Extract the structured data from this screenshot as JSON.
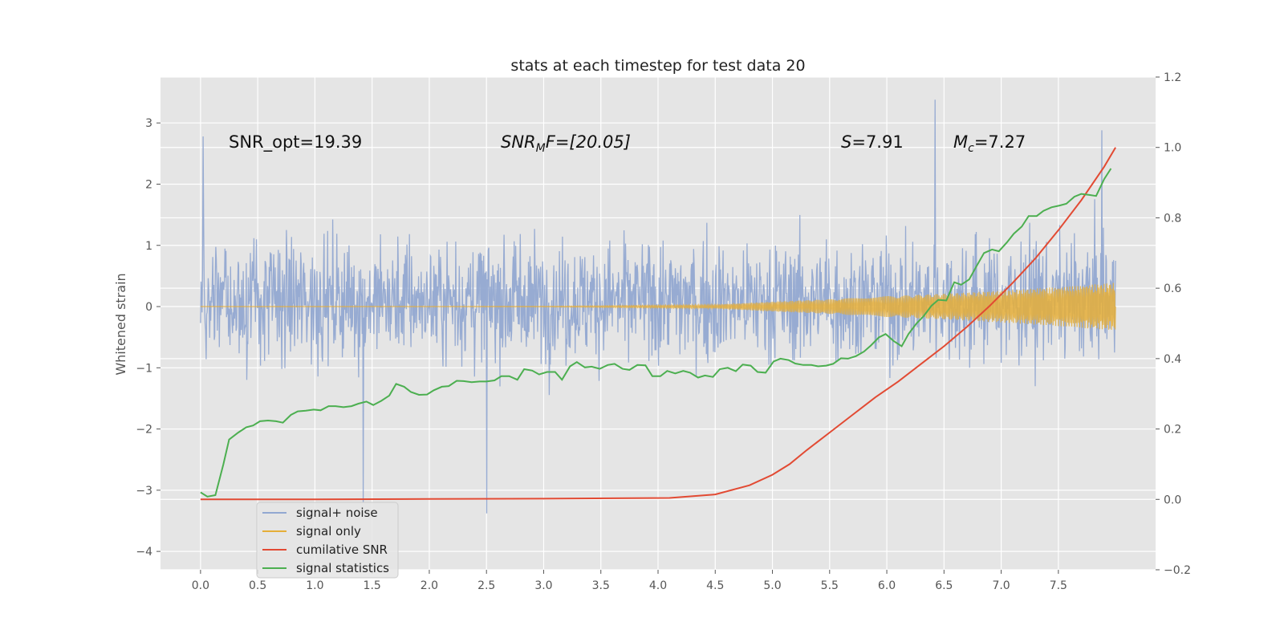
{
  "chart_data": {
    "type": "line",
    "title": "stats at each timestep for test data 20",
    "ylabel": "Whitened strain",
    "xlim": [
      -0.35,
      8.35
    ],
    "ylim": [
      -4.3,
      3.75
    ],
    "y2lim": [
      -0.2,
      1.2
    ],
    "xticks": [
      "0.0",
      "0.5",
      "1.0",
      "1.5",
      "2.0",
      "2.5",
      "3.0",
      "3.5",
      "4.0",
      "4.5",
      "5.0",
      "5.5",
      "6.0",
      "6.5",
      "7.0",
      "7.5"
    ],
    "yticks": [
      "3",
      "2",
      "1",
      "0",
      "−1",
      "−2",
      "−3",
      "−4"
    ],
    "y2ticks": [
      "1.2",
      "1.0",
      "0.8",
      "0.6",
      "0.4",
      "0.2",
      "0.0",
      "−0.2"
    ],
    "grid": true,
    "legend_position": "lower-left",
    "annotations": {
      "snr_opt": "SNR_opt=19.39",
      "snr_mf_main": "SNR",
      "snr_mf_sub": "M",
      "snr_mf_rest": "F=[20.05]",
      "s_sym": "S",
      "s_val": "=7.91",
      "mc_sym": "M",
      "mc_sub": "c",
      "mc_val": "=7.27"
    },
    "series": [
      {
        "name": "signal+ noise",
        "color": "#92a8d1",
        "axis": "left",
        "description_values": {
          "x_range": [
            0.0,
            8.0
          ],
          "typical_band": [
            -1.8,
            2.0
          ],
          "notable_spikes": [
            [
              0.02,
              2.78
            ],
            [
              1.42,
              -3.2
            ],
            [
              2.5,
              -3.38
            ],
            [
              6.42,
              3.38
            ],
            [
              7.88,
              2.88
            ]
          ]
        }
      },
      {
        "name": "signal only",
        "color": "#e5ae38",
        "axis": "left",
        "envelope": {
          "x": [
            0.0,
            3.0,
            4.5,
            5.0,
            5.5,
            6.0,
            6.5,
            7.0,
            7.5,
            8.0
          ],
          "amplitude": [
            0.0,
            0.005,
            0.03,
            0.08,
            0.12,
            0.17,
            0.21,
            0.26,
            0.32,
            0.39
          ]
        }
      },
      {
        "name": "cumilative SNR",
        "color": "#e24a33",
        "axis": "right",
        "x": [
          0.0,
          1.0,
          2.0,
          3.0,
          4.1,
          4.5,
          4.8,
          5.0,
          5.15,
          5.3,
          5.5,
          5.7,
          5.9,
          6.1,
          6.3,
          6.5,
          6.7,
          6.9,
          7.1,
          7.3,
          7.5,
          7.7,
          7.9,
          8.0
        ],
        "y": [
          0.0,
          0.0,
          0.001,
          0.002,
          0.004,
          0.014,
          0.04,
          0.07,
          0.1,
          0.14,
          0.19,
          0.24,
          0.29,
          0.335,
          0.385,
          0.435,
          0.49,
          0.55,
          0.615,
          0.685,
          0.765,
          0.85,
          0.945,
          1.0
        ]
      },
      {
        "name": "signal statistics",
        "color": "#4caf50",
        "axis": "right",
        "x": [
          0.0,
          0.06,
          0.13,
          0.2,
          0.25,
          0.33,
          0.4,
          0.46,
          0.52,
          0.59,
          0.66,
          0.72,
          0.79,
          0.85,
          0.92,
          0.99,
          1.05,
          1.12,
          1.18,
          1.25,
          1.32,
          1.38,
          1.45,
          1.51,
          1.58,
          1.65,
          1.71,
          1.78,
          1.84,
          1.91,
          1.98,
          2.04,
          2.11,
          2.17,
          2.24,
          2.3,
          2.37,
          2.44,
          2.5,
          2.57,
          2.63,
          2.7,
          2.77,
          2.83,
          2.9,
          2.96,
          3.03,
          3.1,
          3.16,
          3.23,
          3.29,
          3.36,
          3.42,
          3.49,
          3.56,
          3.62,
          3.69,
          3.75,
          3.82,
          3.89,
          3.95,
          4.02,
          4.08,
          4.15,
          4.22,
          4.28,
          4.35,
          4.41,
          4.48,
          4.54,
          4.61,
          4.68,
          4.74,
          4.81,
          4.87,
          4.94,
          5.01,
          5.07,
          5.14,
          5.2,
          5.27,
          5.34,
          5.4,
          5.47,
          5.53,
          5.6,
          5.66,
          5.73,
          5.8,
          5.86,
          5.93,
          5.99,
          6.06,
          6.13,
          6.19,
          6.26,
          6.32,
          6.39,
          6.45,
          6.52,
          6.59,
          6.65,
          6.72,
          6.78,
          6.85,
          6.92,
          6.98,
          7.05,
          7.11,
          7.18,
          7.24,
          7.31,
          7.37,
          7.44,
          7.51,
          7.57,
          7.64,
          7.7,
          7.77,
          7.83,
          7.9,
          7.96
        ],
        "y": [
          0.02,
          0.008,
          0.012,
          0.1,
          0.17,
          0.19,
          0.205,
          0.21,
          0.222,
          0.224,
          0.222,
          0.218,
          0.24,
          0.25,
          0.252,
          0.255,
          0.253,
          0.265,
          0.265,
          0.262,
          0.265,
          0.272,
          0.278,
          0.268,
          0.28,
          0.295,
          0.328,
          0.32,
          0.305,
          0.297,
          0.298,
          0.31,
          0.32,
          0.322,
          0.337,
          0.336,
          0.333,
          0.335,
          0.335,
          0.338,
          0.35,
          0.35,
          0.34,
          0.37,
          0.366,
          0.355,
          0.362,
          0.362,
          0.34,
          0.378,
          0.39,
          0.375,
          0.377,
          0.371,
          0.382,
          0.385,
          0.371,
          0.368,
          0.382,
          0.381,
          0.35,
          0.35,
          0.365,
          0.358,
          0.365,
          0.36,
          0.346,
          0.352,
          0.348,
          0.37,
          0.374,
          0.364,
          0.383,
          0.38,
          0.362,
          0.36,
          0.392,
          0.4,
          0.396,
          0.386,
          0.382,
          0.382,
          0.378,
          0.38,
          0.385,
          0.401,
          0.4,
          0.407,
          0.42,
          0.437,
          0.46,
          0.47,
          0.45,
          0.435,
          0.47,
          0.5,
          0.52,
          0.55,
          0.567,
          0.565,
          0.617,
          0.61,
          0.625,
          0.66,
          0.7,
          0.71,
          0.705,
          0.73,
          0.755,
          0.775,
          0.805,
          0.805,
          0.82,
          0.83,
          0.835,
          0.84,
          0.86,
          0.868,
          0.865,
          0.862,
          0.91,
          0.94
        ]
      }
    ]
  }
}
